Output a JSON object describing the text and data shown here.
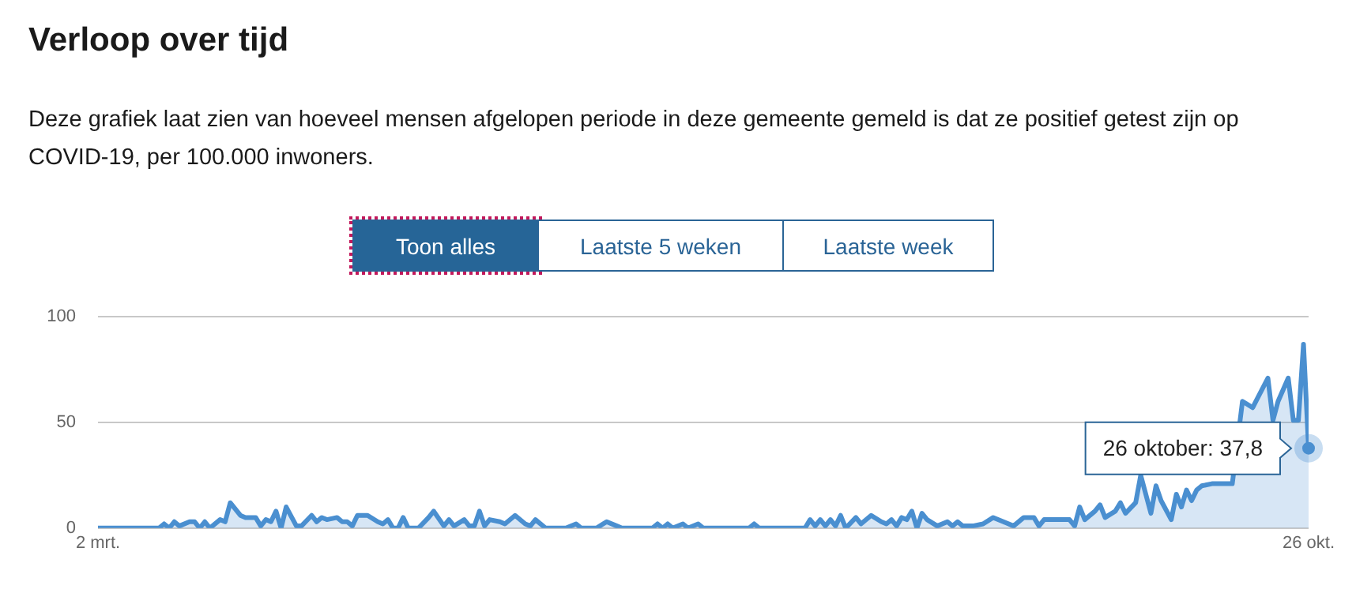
{
  "chart_data": {
    "type": "area",
    "title": "Verloop over tijd",
    "subtitle": "Deze grafiek laat zien van hoeveel mensen afgelopen periode in deze gemeente gemeld is dat ze positief getest zijn op COVID-19, per 100.000 inwoners.",
    "annotations": [
      "Toon alles",
      "Laatste 5 weken",
      "Laatste week",
      {
        "text": "26 oktober: 37,8",
        "x": "--10-26",
        "y": 37.8
      }
    ],
    "x": [
      "--03-02",
      "--03-14",
      "--03-15",
      "--03-16",
      "--03-17",
      "--03-18",
      "--03-20",
      "--03-21",
      "--03-22",
      "--03-23",
      "--03-24",
      "--03-26",
      "--03-27",
      "--03-28",
      "--03-30",
      "--03-31",
      "--04-02",
      "--04-03",
      "--04-04",
      "--04-05",
      "--04-06",
      "--04-07",
      "--04-08",
      "--04-10",
      "--04-11",
      "--04-13",
      "--04-14",
      "--04-15",
      "--04-16",
      "--04-18",
      "--04-19",
      "--04-20",
      "--04-21",
      "--04-22",
      "--04-24",
      "--04-26",
      "--04-27",
      "--04-28",
      "--04-29",
      "--04-30",
      "--05-01",
      "--05-02",
      "--05-04",
      "--05-06",
      "--05-07",
      "--05-09",
      "--05-10",
      "--05-11",
      "--05-13",
      "--05-14",
      "--05-15",
      "--05-16",
      "--05-17",
      "--05-18",
      "--05-20",
      "--05-21",
      "--05-23",
      "--05-25",
      "--05-26",
      "--05-27",
      "--05-29",
      "--06-02",
      "--06-04",
      "--06-05",
      "--06-08",
      "--06-10",
      "--06-12",
      "--06-13",
      "--06-19",
      "--06-20",
      "--06-21",
      "--06-22",
      "--06-23",
      "--06-25",
      "--06-26",
      "--06-28",
      "--06-29",
      "--07-08",
      "--07-09",
      "--07-10",
      "--07-19",
      "--07-20",
      "--07-21",
      "--07-22",
      "--07-23",
      "--07-24",
      "--07-25",
      "--07-26",
      "--07-27",
      "--07-29",
      "--07-30",
      "--08-01",
      "--08-03",
      "--08-04",
      "--08-05",
      "--08-06",
      "--08-07",
      "--08-08",
      "--08-09",
      "--08-10",
      "--08-11",
      "--08-12",
      "--08-14",
      "--08-16",
      "--08-17",
      "--08-18",
      "--08-19",
      "--08-21",
      "--08-23",
      "--08-25",
      "--08-27",
      "--08-29",
      "--08-31",
      "--09-02",
      "--09-03",
      "--09-04",
      "--09-09",
      "--09-10",
      "--09-11",
      "--09-12",
      "--09-14",
      "--09-15",
      "--09-16",
      "--09-18",
      "--09-19",
      "--09-20",
      "--09-22",
      "--09-23",
      "--09-25",
      "--09-26",
      "--09-27",
      "--09-29",
      "--09-30",
      "--10-01",
      "--10-02",
      "--10-03",
      "--10-04",
      "--10-05",
      "--10-07",
      "--10-08",
      "--10-09",
      "--10-10",
      "--10-11",
      "--10-12",
      "--10-13",
      "--10-14",
      "--10-15",
      "--10-17",
      "--10-18",
      "--10-19",
      "--10-20",
      "--10-22",
      "--10-23",
      "--10-24",
      "--10-25",
      "--10-26"
    ],
    "series": [
      {
        "color": "#4a8fd0",
        "values": [
          0,
          0,
          2,
          0,
          3,
          1,
          3,
          3,
          0,
          3,
          0,
          4,
          3,
          12,
          6,
          5,
          5,
          1,
          4,
          3,
          8,
          0,
          10,
          1,
          1,
          6,
          3,
          5,
          4,
          5,
          3,
          3,
          1,
          6,
          6,
          3,
          2,
          4,
          0,
          0,
          5,
          0,
          0,
          5,
          8,
          1,
          4,
          1,
          4,
          1,
          1,
          8,
          1,
          4,
          3,
          2,
          6,
          2,
          1,
          4,
          0,
          0,
          2,
          0,
          0,
          3,
          1,
          0,
          0,
          2,
          0,
          2,
          0,
          2,
          0,
          2,
          0,
          0,
          2,
          0,
          0,
          4,
          1,
          4,
          1,
          4,
          1,
          6,
          0,
          5,
          2,
          6,
          3,
          2,
          4,
          1,
          5,
          4,
          8,
          0,
          7,
          4,
          1,
          3,
          1,
          3,
          1,
          1,
          2,
          5,
          3,
          1,
          5,
          5,
          1,
          4,
          4,
          1,
          10,
          4,
          8,
          11,
          5,
          8,
          12,
          7,
          12,
          25,
          7,
          20,
          13,
          4,
          16,
          10,
          18,
          13,
          18,
          20,
          21,
          21,
          null,
          null,
          21,
          null,
          60,
          null,
          57,
          null,
          71,
          51,
          60,
          71,
          51,
          51,
          87,
          37.8
        ]
      }
    ],
    "xlim": [
      "--03-02",
      "--10-26"
    ],
    "xticks": [
      {
        "value": "--03-02",
        "label": "2 mrt."
      },
      {
        "value": "--10-26",
        "label": "26 okt."
      }
    ],
    "ylim": [
      0,
      100
    ],
    "yticks": [
      0,
      50,
      100
    ],
    "grid": "y",
    "legend": false,
    "marker": "none"
  }
}
